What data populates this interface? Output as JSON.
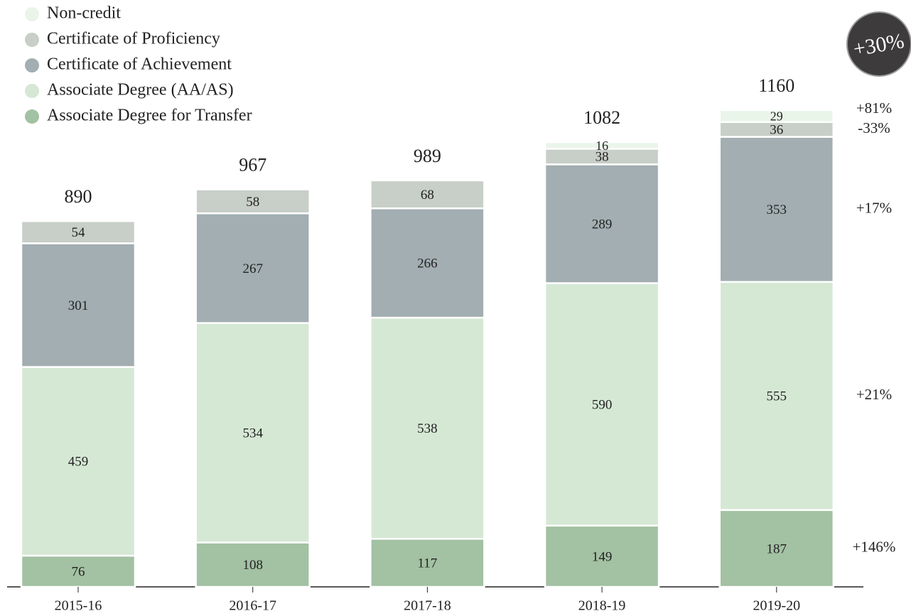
{
  "chart_data": {
    "type": "stacked_bar",
    "categories": [
      "2015-16",
      "2016-17",
      "2017-18",
      "2018-19",
      "2019-20"
    ],
    "series": [
      {
        "name": "Associate Degree for Transfer",
        "color": "#a3c1a3",
        "values": [
          76,
          108,
          117,
          149,
          187
        ],
        "change": "+146%"
      },
      {
        "name": "Associate Degree (AA/AS)",
        "color": "#d5e8d4",
        "values": [
          459,
          534,
          538,
          590,
          555
        ],
        "change": "+21%"
      },
      {
        "name": "Certificate of Achievement",
        "color": "#a2aeb1",
        "values": [
          301,
          267,
          266,
          289,
          353
        ],
        "change": "+17%"
      },
      {
        "name": "Certificate of Proficiency",
        "color": "#c8cec8",
        "values": [
          54,
          58,
          68,
          38,
          36
        ],
        "change": "-33%"
      },
      {
        "name": "Non-credit",
        "color": "#eaf5ea",
        "values": [
          null,
          null,
          null,
          16,
          29
        ],
        "change": "+81%"
      }
    ],
    "totals": [
      890,
      967,
      989,
      1082,
      1160
    ],
    "total_change": "+30%"
  }
}
